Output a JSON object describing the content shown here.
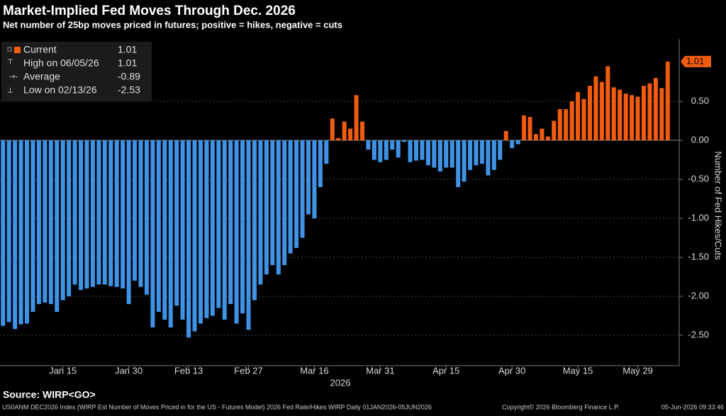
{
  "chart_data": {
    "type": "bar",
    "title": "Market-Implied Fed Moves Through Dec. 2026",
    "subtitle": "Net number of 25bp moves priced in futures; positive = hikes, negative = cuts",
    "y_axis_label": "Number of Fed Hikes/Cuts",
    "x_axis_sublabel": "2026",
    "color_positive": "#f25c0f",
    "color_negative": "#3f93e6",
    "grid": true,
    "ylim": [
      -2.89,
      1.3
    ],
    "yticks": [
      {
        "value": 0.5,
        "label": "0.50"
      },
      {
        "value": 0,
        "label": "0.00"
      },
      {
        "value": -0.5,
        "label": "-0.50"
      },
      {
        "value": -1,
        "label": "-1.00"
      },
      {
        "value": -1.5,
        "label": "-1.50"
      },
      {
        "value": -2,
        "label": "-2.00"
      },
      {
        "value": -2.5,
        "label": "-2.50"
      }
    ],
    "categories": [
      null,
      null,
      null,
      null,
      null,
      null,
      null,
      null,
      null,
      null,
      "Jan 15",
      null,
      null,
      null,
      null,
      null,
      null,
      null,
      null,
      null,
      null,
      "Jan 30",
      null,
      null,
      null,
      null,
      null,
      null,
      null,
      null,
      null,
      "Feb 13",
      null,
      null,
      null,
      null,
      null,
      null,
      null,
      null,
      null,
      "Feb 27",
      null,
      null,
      null,
      null,
      null,
      null,
      null,
      null,
      null,
      null,
      "Mar 16",
      null,
      null,
      null,
      null,
      null,
      null,
      null,
      null,
      null,
      null,
      "Mar 31",
      null,
      null,
      null,
      null,
      null,
      null,
      null,
      null,
      null,
      null,
      "Apr 15",
      null,
      null,
      null,
      null,
      null,
      null,
      null,
      null,
      null,
      null,
      "Apr 30",
      null,
      null,
      null,
      null,
      null,
      null,
      null,
      null,
      null,
      null,
      "May 15",
      null,
      null,
      null,
      null,
      null,
      null,
      null,
      null,
      null,
      "May 29",
      null,
      null,
      null,
      null,
      null
    ],
    "values": [
      -2.38,
      -2.33,
      -2.42,
      -2.36,
      -2.35,
      -2.2,
      -2.1,
      -2.08,
      -2.1,
      -2.2,
      -2.05,
      -2.0,
      -1.85,
      -1.92,
      -1.9,
      -1.88,
      -1.85,
      -1.85,
      -1.87,
      -1.88,
      -1.9,
      -2.1,
      -1.8,
      -1.88,
      -1.98,
      -2.4,
      -2.2,
      -2.3,
      -2.4,
      -2.12,
      -2.3,
      -2.53,
      -2.45,
      -2.35,
      -2.28,
      -2.25,
      -2.15,
      -2.3,
      -2.1,
      -2.35,
      -2.22,
      -2.43,
      -2.05,
      -1.85,
      -1.72,
      -1.6,
      -1.72,
      -1.6,
      -1.45,
      -1.38,
      -1.25,
      -0.95,
      -1.0,
      -0.6,
      -0.3,
      0.28,
      0.03,
      0.24,
      0.15,
      0.58,
      0.24,
      -0.12,
      -0.25,
      -0.28,
      -0.25,
      -0.12,
      -0.22,
      -0.02,
      -0.28,
      -0.26,
      -0.25,
      -0.32,
      -0.35,
      -0.4,
      -0.35,
      -0.35,
      -0.6,
      -0.53,
      -0.38,
      -0.32,
      -0.3,
      -0.45,
      -0.38,
      -0.25,
      0.12,
      -0.1,
      -0.05,
      0.32,
      0.3,
      0.08,
      0.15,
      0.05,
      0.25,
      0.4,
      0.4,
      0.5,
      0.62,
      0.53,
      0.7,
      0.82,
      0.75,
      0.95,
      0.68,
      0.65,
      0.6,
      0.58,
      0.56,
      0.7,
      0.73,
      0.8,
      0.67,
      1.01
    ],
    "legend": [
      {
        "label": "Current",
        "value": 1.01
      },
      {
        "label": "High on 06/05/26",
        "value": 1.01
      },
      {
        "label": "Average",
        "value": -0.89
      },
      {
        "label": "Low on 02/13/26",
        "value": -2.53
      }
    ],
    "source": "Source: WIRP<GO>",
    "footer": [
      "US0ANM DEC2026 Index (WIRP Est Number of Moves Priced in for the US - Futures Model) 2026 Fed Rate/Hikes WIRP Daily 01JAN2026-05JUN2026",
      "Copyright© 2026 Bloomberg Finance L.P.",
      "05-Jun-2026 09:33:46"
    ]
  }
}
